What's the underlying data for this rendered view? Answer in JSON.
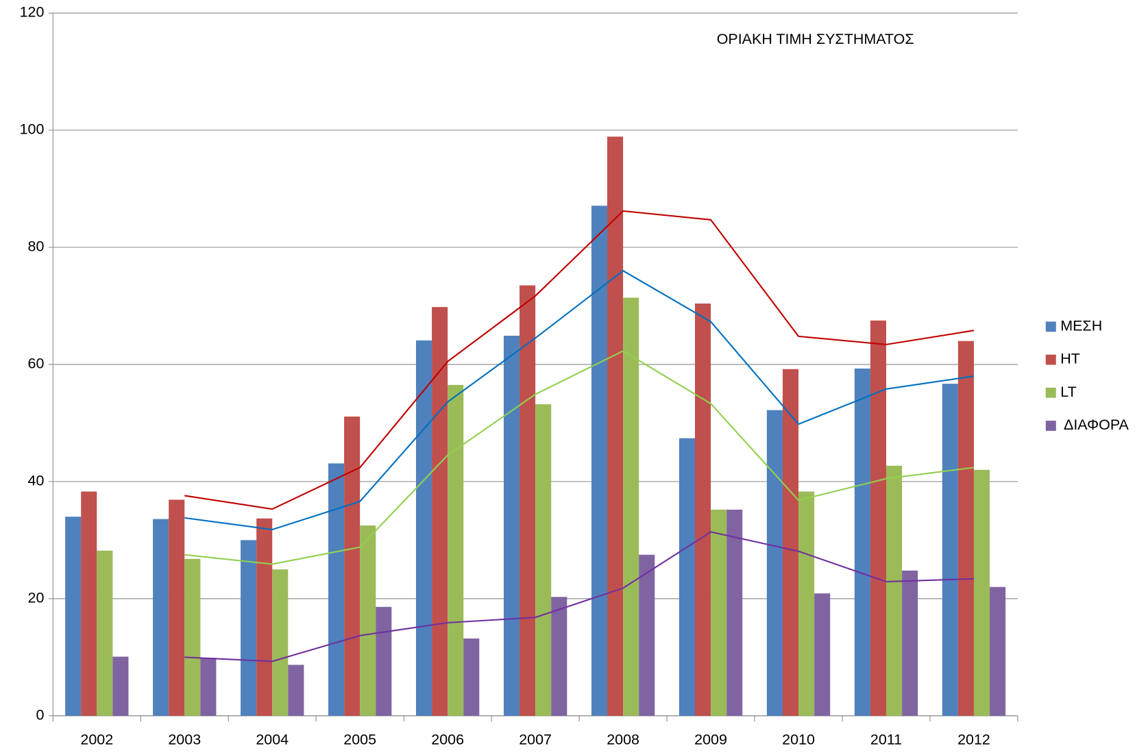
{
  "chart_data": {
    "type": "bar",
    "title": "ΟΡΙΑΚΗ ΤΙΜΗ ΣΥΣΤΗΜΑΤΟΣ",
    "categories": [
      "2002",
      "2003",
      "2004",
      "2005",
      "2006",
      "2007",
      "2008",
      "2009",
      "2010",
      "2011",
      "2012"
    ],
    "series": [
      {
        "name": "ΜΕΣΗ",
        "color": "#4f81bd",
        "line_color": "#0070c0",
        "values": [
          34,
          33.6,
          30,
          43.1,
          64.1,
          64.9,
          87.1,
          47.4,
          52.2,
          59.3,
          56.7
        ],
        "moving_average": [
          null,
          33.8,
          31.8,
          36.6,
          53.6,
          64.5,
          76.0,
          67.3,
          49.8,
          55.8,
          58.0
        ]
      },
      {
        "name": "HT",
        "color": "#c0504d",
        "line_color": "#c00000",
        "values": [
          38.3,
          36.9,
          33.7,
          51.1,
          69.8,
          73.5,
          98.9,
          70.4,
          59.2,
          67.5,
          64.0
        ],
        "moving_average": [
          null,
          37.6,
          35.3,
          42.4,
          60.5,
          71.7,
          86.2,
          84.7,
          64.8,
          63.4,
          65.8
        ]
      },
      {
        "name": "LT",
        "color": "#9bbb59",
        "line_color": "#92d050",
        "values": [
          28.2,
          26.8,
          25.0,
          32.5,
          56.5,
          53.2,
          71.4,
          35.2,
          38.3,
          42.7,
          42.0
        ],
        "moving_average": [
          null,
          27.5,
          25.9,
          28.8,
          44.5,
          54.9,
          62.3,
          53.3,
          36.8,
          40.5,
          42.4
        ]
      },
      {
        "name": " ΔΙΑΦΟΡΑ",
        "color": "#8064a2",
        "line_color": "#7030a0",
        "values": [
          10.1,
          9.9,
          8.7,
          18.6,
          13.2,
          20.3,
          27.5,
          35.2,
          20.9,
          24.8,
          22.0
        ],
        "moving_average": [
          null,
          10.0,
          9.3,
          13.7,
          15.9,
          16.8,
          21.8,
          31.4,
          28.1,
          22.9,
          23.4
        ]
      }
    ],
    "ylim": [
      0,
      120
    ],
    "yticks": [
      0,
      20,
      40,
      60,
      80,
      100,
      120
    ],
    "grid": true,
    "legend": "right"
  }
}
